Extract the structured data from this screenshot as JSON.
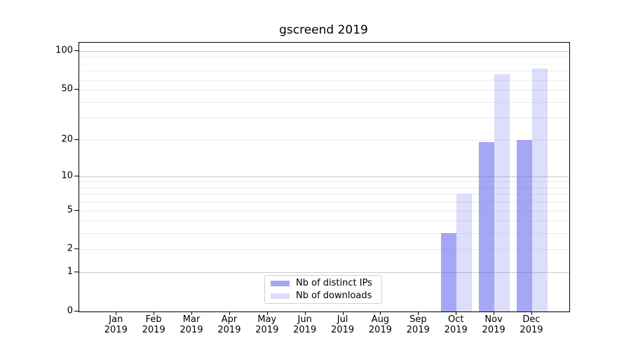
{
  "chart_data": {
    "type": "bar",
    "title": "gscreend 2019",
    "x_axis": {
      "categories": [
        "Jan",
        "Feb",
        "Mar",
        "Apr",
        "May",
        "Jun",
        "Jul",
        "Aug",
        "Sep",
        "Oct",
        "Nov",
        "Dec"
      ],
      "year": "2019"
    },
    "y_axis": {
      "scale": "log1p",
      "ylim": [
        0,
        116
      ],
      "tick_labels": [
        "0",
        "1",
        "2",
        "5",
        "10",
        "20",
        "50",
        "100"
      ],
      "tick_values": [
        0,
        1,
        2,
        5,
        10,
        20,
        50,
        100
      ],
      "major_gridlines": [
        1,
        10,
        100
      ],
      "minor_gridlines": [
        2,
        3,
        4,
        5,
        6,
        7,
        8,
        9,
        20,
        30,
        40,
        50,
        60,
        70,
        80,
        90
      ],
      "grid_on": true
    },
    "series": [
      {
        "name": "Nb of distinct IPs",
        "color": "#a6a6f6",
        "fill": "rgba(102,102,240,0.58)",
        "values": [
          0,
          0,
          0,
          0,
          0,
          0,
          0,
          0,
          0,
          3,
          19,
          20
        ]
      },
      {
        "name": "Nb of downloads",
        "color": "#ddddfb",
        "fill": "rgba(102,102,240,0.22)",
        "values": [
          0,
          0,
          0,
          0,
          0,
          0,
          0,
          0,
          0,
          7,
          66,
          73
        ]
      }
    ],
    "legend": {
      "entries": [
        "Nb of distinct IPs",
        "Nb of downloads"
      ],
      "position": "inside-bottom-center"
    },
    "colors": {
      "grid_minor": "#ececec",
      "grid_major": "#c9c9c9",
      "axis": "#000000",
      "background": "#ffffff"
    }
  }
}
